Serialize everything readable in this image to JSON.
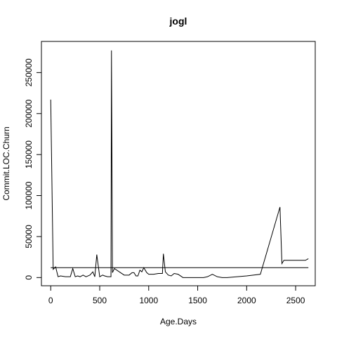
{
  "chart_data": {
    "type": "line",
    "title": "jogl",
    "xlabel": "Age.Days",
    "ylabel": "Commit.LOC.Churn",
    "xlim": [
      -95,
      2700
    ],
    "ylim": [
      -10000,
      288000
    ],
    "xticks": [
      0,
      500,
      1000,
      1500,
      2000,
      2500
    ],
    "yticks": [
      0,
      50000,
      100000,
      150000,
      200000,
      250000
    ],
    "grid": false,
    "legend": "none",
    "series": [
      {
        "x": [
          0,
          25,
          50,
          75,
          100,
          150,
          200,
          225,
          250,
          275,
          300,
          330,
          360,
          400,
          430,
          450,
          470,
          500,
          530,
          550,
          580,
          615,
          620,
          630,
          650,
          700,
          750,
          800,
          830,
          850,
          870,
          890,
          910,
          930,
          950,
          980,
          1000,
          1050,
          1100,
          1140,
          1150,
          1170,
          1200,
          1230,
          1260,
          1300,
          1350,
          1400,
          1450,
          1500,
          1560,
          1600,
          1650,
          1700,
          1750,
          1800,
          2000,
          2140,
          2340,
          2360,
          2380,
          2400,
          2500,
          2600,
          2630
        ],
        "y": [
          217000,
          10000,
          13000,
          1000,
          2000,
          1000,
          1000,
          11000,
          1000,
          2000,
          1000,
          3000,
          1000,
          3000,
          7000,
          1000,
          28000,
          1000,
          3000,
          2000,
          1000,
          1000,
          277000,
          6000,
          11000,
          7000,
          3000,
          3000,
          6000,
          6000,
          2000,
          2000,
          9000,
          7000,
          12000,
          6000,
          4000,
          4000,
          5000,
          5000,
          29000,
          7000,
          3000,
          2000,
          5000,
          4000,
          0,
          0,
          0,
          0,
          0,
          1000,
          4000,
          1000,
          0,
          0,
          2000,
          4000,
          86000,
          17000,
          21000,
          21000,
          21000,
          21000,
          23000
        ]
      }
    ],
    "hline": 12000
  }
}
